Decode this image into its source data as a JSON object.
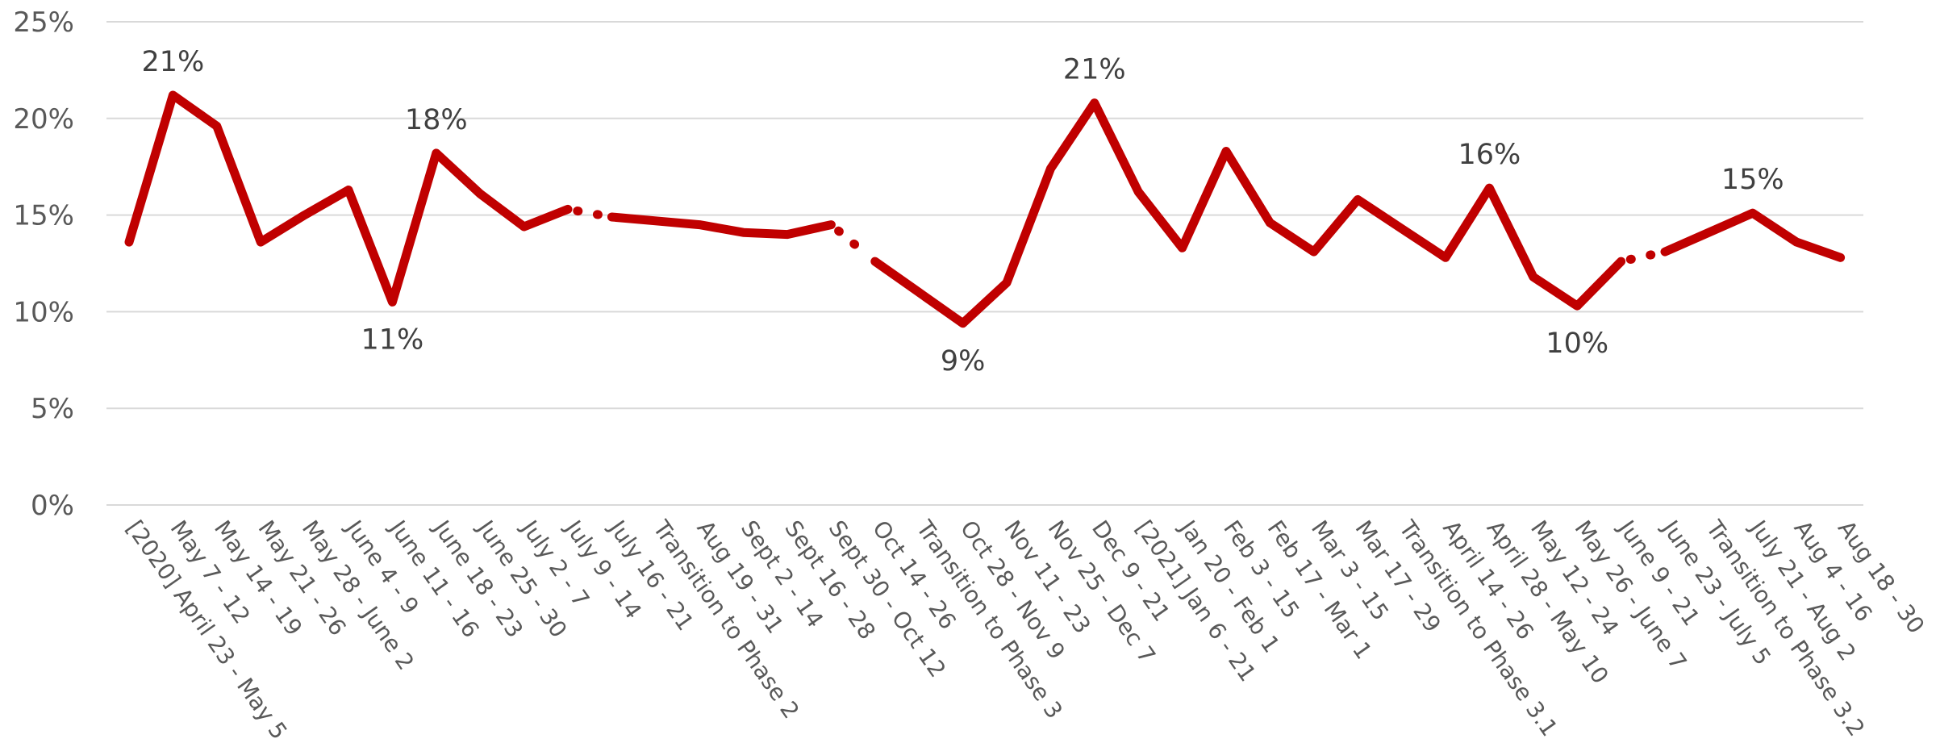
{
  "chart_data": {
    "type": "line",
    "title": "",
    "xlabel": "",
    "ylabel": "",
    "ylim": [
      0,
      25
    ],
    "yticks": [
      0,
      5,
      10,
      15,
      20,
      25
    ],
    "ytick_labels": [
      "0%",
      "5%",
      "10%",
      "15%",
      "20%",
      "25%"
    ],
    "grid": true,
    "legend": "none",
    "categories": [
      "[2020] April 23 - May 5",
      "May 7 - 12",
      "May 14 - 19",
      "May 21 - 26",
      "May 28 - June 2",
      "June 4 - 9",
      "June 11 - 16",
      "June 18 - 23",
      "June 25 - 30",
      "July 2 - 7",
      "July 9 - 14",
      "July 16 - 21",
      "Transition to Phase 2",
      "Aug 19 - 31",
      "Sept 2 - 14",
      "Sept 16 - 28",
      "Sept 30 - Oct 12",
      "Oct 14 - 26",
      "Transition to Phase 3",
      "Oct 28 - Nov 9",
      "Nov 11 - 23",
      "Nov 25 - Dec 7",
      "Dec 9 - 21",
      "[2021] Jan 6 - 21",
      "Jan 20 - Feb 1",
      "Feb 3 - 15",
      "Feb 17 - Mar 1",
      "Mar 3 - 15",
      "Mar 17 - 29",
      "Transition to Phase 3.1",
      "April 14 - 26",
      "April 28 - May 10",
      "May 12 - 24",
      "May 26 - June 7",
      "June 9 - 21",
      "June 23 - July 5",
      "Transition to Phase 3.2",
      "July 21 - Aug 2",
      "Aug 4 - 16",
      "Aug 18 - 30"
    ],
    "series": [
      {
        "values": [
          13.6,
          21.2,
          19.6,
          13.6,
          15.0,
          16.3,
          10.5,
          18.2,
          16.1,
          14.4,
          15.3,
          14.9,
          14.7,
          14.5,
          14.1,
          14.0,
          14.5,
          12.6,
          11.0,
          9.4,
          11.5,
          17.4,
          20.8,
          16.2,
          13.3,
          18.3,
          14.6,
          13.1,
          15.8,
          14.3,
          12.8,
          16.4,
          11.8,
          10.3,
          12.6,
          13.1,
          14.1,
          15.1,
          13.6,
          12.8
        ],
        "breaks_after": [
          "July 9 - 14",
          "Sept 30 - Oct 12",
          "June 9 - 21"
        ]
      }
    ],
    "data_labels": [
      {
        "category": "May 7 - 12",
        "text": "21%",
        "position": "above"
      },
      {
        "category": "June 11 - 16",
        "text": "11%",
        "position": "below"
      },
      {
        "category": "June 18 - 23",
        "text": "18%",
        "position": "above"
      },
      {
        "category": "Oct 28 - Nov 9",
        "text": "9%",
        "position": "below"
      },
      {
        "category": "Dec 9 - 21",
        "text": "21%",
        "position": "above"
      },
      {
        "category": "April 28 - May 10",
        "text": "16%",
        "position": "above"
      },
      {
        "category": "May 26 - June 7",
        "text": "10%",
        "position": "below"
      },
      {
        "category": "July 21 - Aug 2",
        "text": "15%",
        "position": "above"
      }
    ],
    "colors": {
      "series": "#c00000",
      "grid": "#d9d9d9",
      "tick_text": "#595959",
      "label_text": "#404040"
    }
  }
}
